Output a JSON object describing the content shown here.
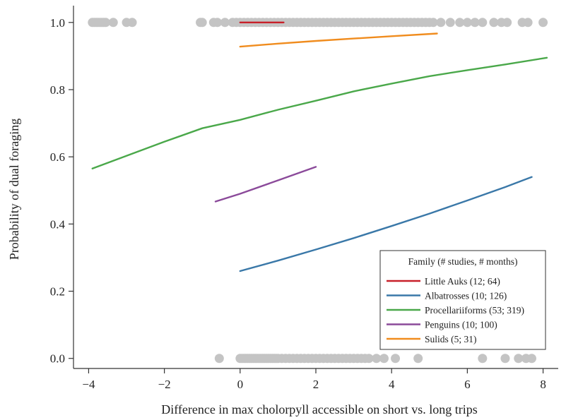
{
  "chart_data": {
    "type": "line",
    "xlabel": "Difference in max cholorpyll accessible on short vs. long trips",
    "ylabel": "Probability of dual foraging",
    "xlim": [
      -4.4,
      8.4
    ],
    "ylim": [
      -0.03,
      1.05
    ],
    "xticks": [
      -4,
      -2,
      0,
      2,
      4,
      6,
      8
    ],
    "xtick_labels": [
      "−4",
      "−2",
      "0",
      "2",
      "4",
      "6",
      "8"
    ],
    "yticks": [
      0.0,
      0.2,
      0.4,
      0.6,
      0.8,
      1.0
    ],
    "ytick_labels": [
      "0.0",
      "0.2",
      "0.4",
      "0.6",
      "0.8",
      "1.0"
    ],
    "grid": false,
    "legend": {
      "title": "Family (# studies, # months)",
      "placement": "bottom-right"
    },
    "series": [
      {
        "name": "Little Auks (12; 64)",
        "color": "#c8202a",
        "x": [
          0,
          1.15
        ],
        "y": [
          1.0,
          1.0
        ]
      },
      {
        "name": "Albatrosses (10; 126)",
        "color": "#3a78a8",
        "x": [
          0,
          1,
          2,
          3,
          4,
          5,
          6,
          7,
          7.7
        ],
        "y": [
          0.26,
          0.291,
          0.324,
          0.358,
          0.394,
          0.431,
          0.47,
          0.51,
          0.54
        ]
      },
      {
        "name": "Procellariiforms (53; 319)",
        "color": "#4aa84a",
        "x": [
          -3.9,
          -3,
          -2,
          -1,
          0,
          1,
          2,
          3,
          4,
          5,
          6,
          7,
          8.1
        ],
        "y": [
          0.565,
          0.603,
          0.645,
          0.685,
          0.71,
          0.74,
          0.767,
          0.795,
          0.818,
          0.84,
          0.858,
          0.875,
          0.895
        ]
      },
      {
        "name": "Penguins (10; 100)",
        "color": "#8b4a9a",
        "x": [
          -0.65,
          0,
          1,
          2
        ],
        "y": [
          0.467,
          0.49,
          0.53,
          0.57
        ]
      },
      {
        "name": "Sulids (5; 31)",
        "color": "#f08c1e",
        "x": [
          0,
          1,
          2,
          3,
          4,
          5.2
        ],
        "y": [
          0.928,
          0.937,
          0.945,
          0.952,
          0.959,
          0.967
        ]
      }
    ],
    "points": {
      "color": "#c4c4c4",
      "y1_x": [
        -3.9,
        -3.85,
        -3.8,
        -3.75,
        -3.7,
        -3.65,
        -3.6,
        -3.55,
        -3.35,
        -3.0,
        -2.85,
        -1.05,
        -1.0,
        -0.7,
        -0.6,
        -0.4,
        -0.2,
        -0.1,
        0.0,
        0.1,
        0.2,
        0.3,
        0.4,
        0.5,
        0.6,
        0.7,
        0.8,
        0.9,
        1.0,
        1.1,
        1.2,
        1.3,
        1.4,
        1.5,
        1.6,
        1.7,
        1.8,
        1.9,
        2.0,
        2.1,
        2.2,
        2.3,
        2.4,
        2.5,
        2.6,
        2.7,
        2.8,
        2.9,
        3.0,
        3.1,
        3.2,
        3.3,
        3.4,
        3.5,
        3.6,
        3.7,
        3.8,
        3.9,
        4.0,
        4.1,
        4.2,
        4.3,
        4.4,
        4.5,
        4.6,
        4.7,
        4.8,
        4.9,
        5.0,
        5.1,
        5.3,
        5.55,
        5.8,
        6.0,
        6.2,
        6.4,
        6.7,
        6.9,
        7.05,
        7.45,
        7.6,
        8.0
      ],
      "y0_x": [
        -0.55,
        0.0,
        0.05,
        0.1,
        0.15,
        0.2,
        0.25,
        0.3,
        0.35,
        0.4,
        0.45,
        0.5,
        0.55,
        0.6,
        0.65,
        0.7,
        0.75,
        0.8,
        0.85,
        0.9,
        0.95,
        1.0,
        1.1,
        1.2,
        1.3,
        1.4,
        1.5,
        1.6,
        1.7,
        1.8,
        1.9,
        2.0,
        2.1,
        2.2,
        2.3,
        2.4,
        2.5,
        2.6,
        2.7,
        2.8,
        2.9,
        3.0,
        3.1,
        3.2,
        3.3,
        3.4,
        3.6,
        3.8,
        4.1,
        4.7,
        6.4,
        7.0,
        7.35,
        7.55,
        7.7
      ]
    }
  }
}
